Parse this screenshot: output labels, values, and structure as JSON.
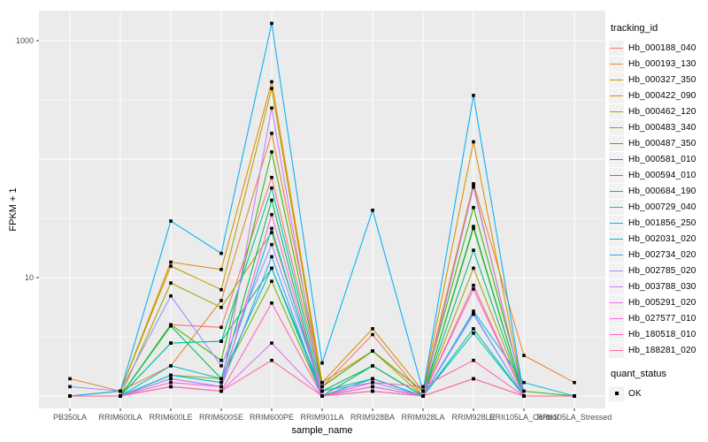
{
  "figure": {
    "background": "#FFFFFF",
    "panel_background": "#EBEBEB",
    "grid_color": "#FFFFFF",
    "axis_text_color": "#4D4D4D",
    "tick_color": "#333333",
    "point_color": "#000000"
  },
  "axes": {
    "x_title": "sample_name",
    "y_title": "FPKM + 1",
    "y_scale": "log10",
    "y_ticks": [
      {
        "label": "1000",
        "value": 1000
      },
      {
        "label": "10",
        "value": 10
      }
    ],
    "y_major_gridlines": [
      1,
      10,
      100,
      1000
    ],
    "y_minor_gridlines": [
      3.1623,
      31.623,
      316.23
    ]
  },
  "legend": {
    "color_title": "tracking_id",
    "shape_title": "quant_status",
    "shape_items": [
      {
        "label": "OK",
        "shape": "filled-square"
      }
    ]
  },
  "chart_data": {
    "type": "line",
    "title": "",
    "xlabel": "sample_name",
    "ylabel": "FPKM + 1",
    "y_scale": "log10",
    "ylim": [
      0.79,
      1800
    ],
    "grid": true,
    "legend_position": "right",
    "point_marker": "black-square",
    "categories": [
      "PB350LA",
      "RRIM600LA",
      "RRIM600LE",
      "RRIM600SE",
      "RRIM600PE",
      "RRIM901LA",
      "RRIM928BA",
      "RRIM928LA",
      "RRIM928LE",
      "RRII105LA_Control",
      "RRII105LA_Stressed"
    ],
    "series": [
      {
        "name": "Hb_000188_040",
        "color": "#F8766D",
        "values": [
          1.0,
          1.0,
          4.0,
          3.8,
          70,
          1.2,
          3.3,
          1.0,
          8.6,
          1.0,
          1.0
        ]
      },
      {
        "name": "Hb_000193_130",
        "color": "#EA8331",
        "values": [
          1.4,
          1.1,
          1.8,
          6.4,
          165,
          1.3,
          2.4,
          1.1,
          62,
          2.2,
          1.3
        ]
      },
      {
        "name": "Hb_000327_350",
        "color": "#D89000",
        "values": [
          1.0,
          1.1,
          13.5,
          11.7,
          450,
          1.3,
          3.7,
          1.1,
          140,
          1.0,
          1.0
        ]
      },
      {
        "name": "Hb_000422_090",
        "color": "#C09B00",
        "values": [
          1.0,
          1.1,
          12.5,
          7.9,
          395,
          1.2,
          2.4,
          1.0,
          60,
          1.0,
          1.0
        ]
      },
      {
        "name": "Hb_000462_120",
        "color": "#A3A500",
        "values": [
          1.0,
          1.0,
          9.0,
          5.6,
          24,
          1.1,
          1.8,
          1.0,
          12,
          1.0,
          1.0
        ]
      },
      {
        "name": "Hb_000483_340",
        "color": "#7CAE00",
        "values": [
          1.0,
          1.0,
          1.5,
          1.4,
          9.3,
          1.0,
          1.4,
          1.0,
          26,
          1.0,
          1.0
        ]
      },
      {
        "name": "Hb_000487_350",
        "color": "#39B600",
        "values": [
          1.0,
          1.0,
          4.0,
          2.0,
          115,
          1.2,
          2.4,
          1.1,
          39,
          1.1,
          1.0
        ]
      },
      {
        "name": "Hb_000581_010",
        "color": "#00BB4E",
        "values": [
          1.0,
          1.0,
          3.9,
          1.4,
          45,
          1.0,
          1.8,
          1.0,
          27,
          1.0,
          1.0
        ]
      },
      {
        "name": "Hb_000594_010",
        "color": "#00BF7D",
        "values": [
          1.0,
          1.0,
          2.8,
          2.9,
          12,
          1.1,
          1.8,
          1.0,
          17,
          1.0,
          1.0
        ]
      },
      {
        "name": "Hb_000684_190",
        "color": "#00C1A3",
        "values": [
          1.0,
          1.0,
          2.8,
          2.9,
          57,
          1.1,
          1.4,
          1.0,
          3.7,
          1.0,
          1.0
        ]
      },
      {
        "name": "Hb_000729_040",
        "color": "#00BFC4",
        "values": [
          1.0,
          1.0,
          1.8,
          1.4,
          12,
          1.0,
          1.1,
          1.0,
          3.4,
          1.0,
          1.0
        ]
      },
      {
        "name": "Hb_001856_250",
        "color": "#00BAE0",
        "values": [
          1.0,
          1.0,
          1.5,
          1.3,
          26,
          1.0,
          1.4,
          1.0,
          5.2,
          1.3,
          1.0
        ]
      },
      {
        "name": "Hb_002031_020",
        "color": "#00B0F6",
        "values": [
          1.0,
          1.1,
          30,
          16,
          1400,
          1.9,
          37,
          1.1,
          345,
          1.0,
          1.0
        ]
      },
      {
        "name": "Hb_002734_020",
        "color": "#35A2FF",
        "values": [
          1.0,
          1.0,
          1.4,
          1.2,
          15,
          1.0,
          1.2,
          1.0,
          4.9,
          1.0,
          1.0
        ]
      },
      {
        "name": "Hb_002785_020",
        "color": "#9590FF",
        "values": [
          1.2,
          1.1,
          7.0,
          1.8,
          19,
          1.1,
          1.3,
          1.0,
          5.0,
          1.0,
          1.0
        ]
      },
      {
        "name": "Hb_003788_030",
        "color": "#C77CFF",
        "values": [
          1.0,
          1.0,
          1.4,
          1.2,
          270,
          1.0,
          1.2,
          1.0,
          58,
          1.0,
          1.0
        ]
      },
      {
        "name": "Hb_005291_020",
        "color": "#E76BF3",
        "values": [
          1.0,
          1.0,
          1.2,
          1.1,
          2.8,
          1.0,
          1.1,
          1.0,
          1.4,
          1.0,
          1.0
        ]
      },
      {
        "name": "Hb_027577_010",
        "color": "#FA62DB",
        "values": [
          1.0,
          1.0,
          1.3,
          1.2,
          34,
          1.0,
          1.2,
          1.0,
          8.0,
          1.0,
          1.0
        ]
      },
      {
        "name": "Hb_180518_010",
        "color": "#FF62BC",
        "values": [
          1.0,
          1.0,
          1.2,
          1.1,
          6.1,
          1.0,
          1.3,
          1.2,
          2.0,
          1.0,
          1.0
        ]
      },
      {
        "name": "Hb_188281_020",
        "color": "#FF6A98",
        "values": [
          1.0,
          1.0,
          1.2,
          1.1,
          2.0,
          1.0,
          1.1,
          1.0,
          1.4,
          1.0,
          1.0
        ]
      }
    ]
  }
}
